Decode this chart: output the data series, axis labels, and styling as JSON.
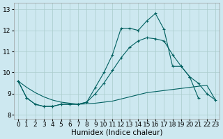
{
  "xlabel": "Humidex (Indice chaleur)",
  "background_color": "#cde8f0",
  "grid_color": "#aacccc",
  "line_color": "#006060",
  "xlim": [
    -0.5,
    23.5
  ],
  "ylim": [
    7.8,
    13.3
  ],
  "xticks": [
    0,
    1,
    2,
    3,
    4,
    5,
    6,
    7,
    8,
    9,
    10,
    11,
    12,
    13,
    14,
    15,
    16,
    17,
    18,
    19,
    20,
    21,
    22,
    23
  ],
  "yticks": [
    8,
    9,
    10,
    11,
    12,
    13
  ],
  "series1_x": [
    0,
    1,
    2,
    3,
    4,
    5,
    6,
    7,
    8,
    9,
    10,
    11,
    12,
    13,
    14,
    15,
    16,
    17,
    18,
    19,
    20,
    21
  ],
  "series1_y": [
    9.6,
    8.8,
    8.5,
    8.4,
    8.4,
    8.5,
    8.5,
    8.5,
    8.6,
    9.3,
    10.0,
    10.85,
    12.1,
    12.1,
    12.0,
    12.45,
    12.8,
    12.05,
    10.3,
    10.3,
    9.8,
    8.8
  ],
  "series2_x": [
    0,
    1,
    2,
    3,
    4,
    5,
    6,
    7,
    8,
    9,
    10,
    11,
    12,
    13,
    14,
    15,
    16,
    17,
    18,
    19,
    20,
    21,
    22,
    23
  ],
  "series2_y": [
    9.6,
    9.3,
    9.05,
    8.85,
    8.7,
    8.6,
    8.55,
    8.5,
    8.52,
    8.55,
    8.6,
    8.65,
    8.75,
    8.85,
    8.95,
    9.05,
    9.1,
    9.15,
    9.2,
    9.25,
    9.3,
    9.35,
    9.4,
    8.7
  ],
  "series3_x": [
    0,
    1,
    2,
    3,
    4,
    5,
    6,
    7,
    8,
    9,
    10,
    11,
    12,
    13,
    14,
    15,
    16,
    17,
    18,
    19,
    20,
    21,
    22,
    23
  ],
  "series3_y": [
    9.6,
    8.8,
    8.5,
    8.4,
    8.4,
    8.5,
    8.5,
    8.5,
    8.6,
    9.0,
    9.5,
    10.1,
    10.7,
    11.2,
    11.5,
    11.65,
    11.6,
    11.5,
    10.85,
    10.3,
    9.8,
    9.5,
    9.0,
    8.7
  ],
  "xlabel_fontsize": 7.5,
  "tick_fontsize": 6.5
}
